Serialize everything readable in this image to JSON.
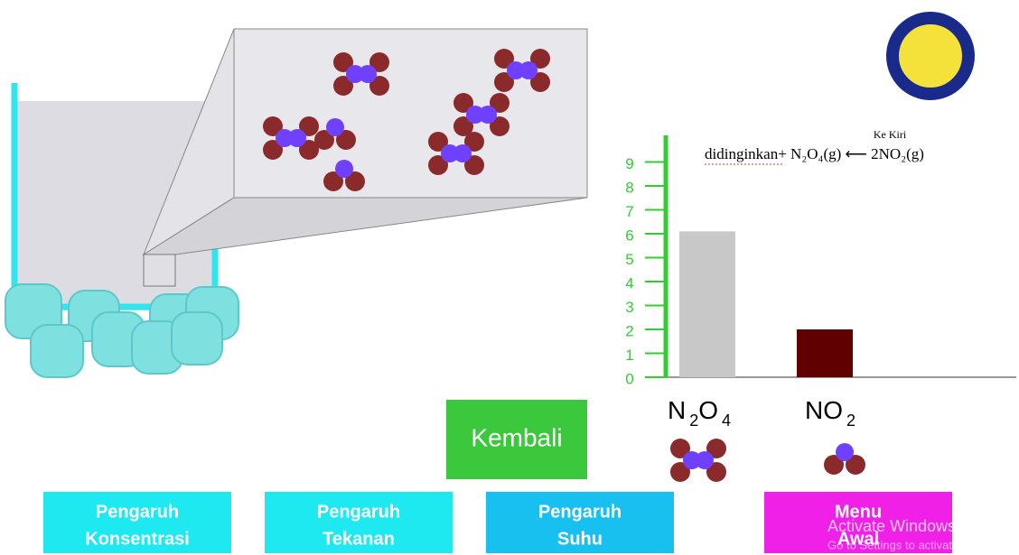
{
  "chart_data": {
    "type": "bar",
    "categories": [
      "N2O4",
      "NO2"
    ],
    "values": [
      6.1,
      2.0
    ],
    "colors": [
      "#c8c8c8",
      "#600000"
    ],
    "ylim": [
      0,
      10
    ],
    "yticks": [
      0,
      1,
      2,
      3,
      4,
      5,
      6,
      7,
      8,
      9
    ],
    "axis_color": "#33cc33"
  },
  "equation": {
    "text": "didinginkan+ N₂O₄(g) ⟵ 2NO₂(g)",
    "arrow_label": "Ke Kiri"
  },
  "buttons": {
    "back": "Kembali",
    "nav": [
      {
        "line1": "Pengaruh",
        "line2": "Konsentrasi"
      },
      {
        "line1": "Pengaruh",
        "line2": "Tekanan"
      },
      {
        "line1": "Pengaruh",
        "line2": "Suhu"
      },
      {
        "line1": "Menu",
        "line2": "Awal"
      }
    ]
  },
  "watermark": {
    "title": "Activate Windows",
    "subtitle": "Go to Settings to activate Windows"
  }
}
